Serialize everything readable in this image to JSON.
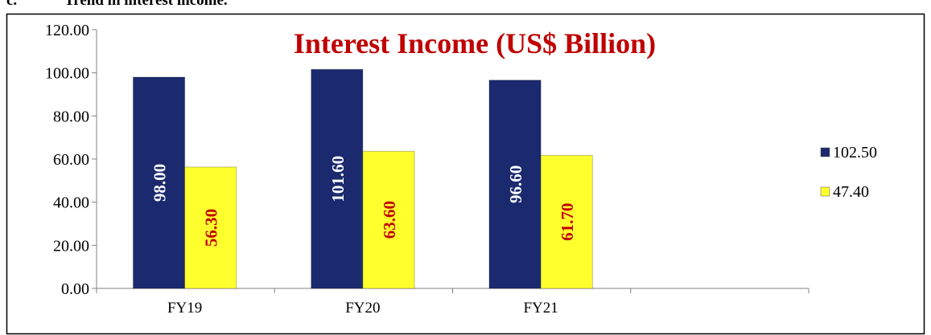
{
  "heading": {
    "number": "c.",
    "text": "Trend in interest income."
  },
  "chart_data": {
    "type": "bar",
    "title": "Interest Income (US$ Billion)",
    "categories": [
      "FY19",
      "FY20",
      "FY21",
      null
    ],
    "series": [
      {
        "name": "102.50",
        "color": "#1b2a6e",
        "values": [
          98.0,
          101.6,
          96.6,
          null
        ],
        "value_labels": [
          "98.00",
          "101.60",
          "96.60",
          null
        ]
      },
      {
        "name": "47.40",
        "color": "#ffff2e",
        "values": [
          56.3,
          63.6,
          61.7,
          null
        ],
        "value_labels": [
          "56.30",
          "63.60",
          "61.70",
          null
        ]
      }
    ],
    "ylim": [
      0,
      120
    ],
    "yticks": [
      {
        "value": 0,
        "label": "0.00"
      },
      {
        "value": 20,
        "label": "20.00"
      },
      {
        "value": 40,
        "label": "40.00"
      },
      {
        "value": 60,
        "label": "60.00"
      },
      {
        "value": 80,
        "label": "80.00"
      },
      {
        "value": 100,
        "label": "100.00"
      },
      {
        "value": 120,
        "label": "120.00"
      }
    ],
    "legend": "right"
  }
}
